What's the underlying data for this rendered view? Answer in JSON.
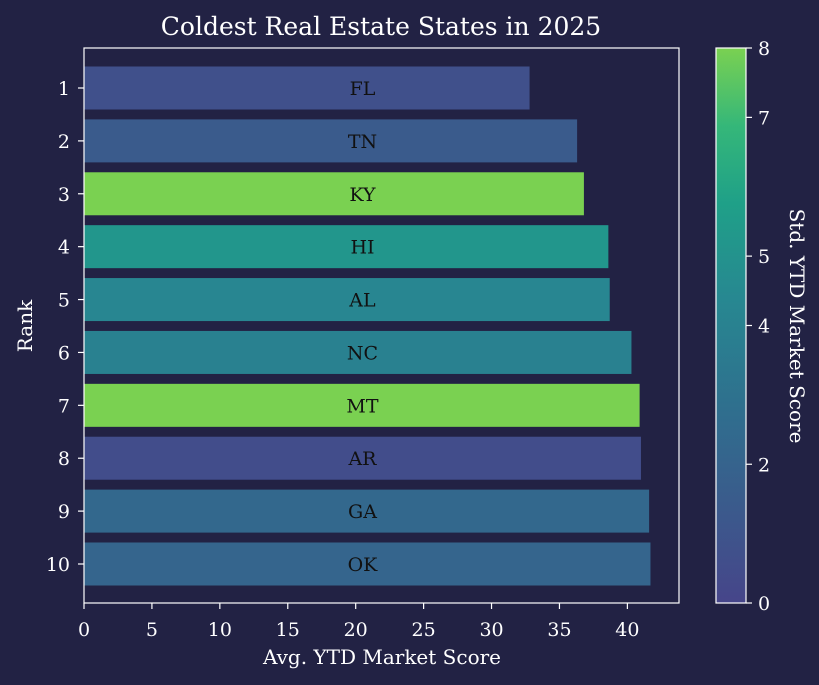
{
  "chart_data": {
    "type": "bar",
    "orientation": "horizontal",
    "title": "Coldest Real Estate States in 2025",
    "xlabel": "Avg. YTD Market Score",
    "ylabel": "Rank",
    "xlim": [
      0,
      43.8
    ],
    "xticks": [
      0,
      5,
      10,
      15,
      20,
      25,
      30,
      35,
      40
    ],
    "categories": [
      "1",
      "2",
      "3",
      "4",
      "5",
      "6",
      "7",
      "8",
      "9",
      "10"
    ],
    "bar_labels": [
      "FL",
      "TN",
      "KY",
      "HI",
      "AL",
      "NC",
      "MT",
      "AR",
      "GA",
      "OK"
    ],
    "values": [
      32.8,
      36.3,
      36.8,
      38.6,
      38.7,
      40.3,
      40.9,
      41.0,
      41.6,
      41.7
    ],
    "std_scores": [
      0.7,
      1.4,
      8.0,
      4.8,
      3.9,
      3.6,
      8.0,
      0.5,
      2.2,
      2.0
    ],
    "colorbar": {
      "label": "Std. YTD Market Score",
      "range": [
        0,
        8
      ],
      "ticks": [
        "0",
        "2",
        "4",
        "5",
        "7",
        "8"
      ],
      "tick_values": [
        0,
        2,
        4,
        5,
        7,
        8
      ],
      "colors": [
        "#46458a",
        "#3b5a8c",
        "#2f6f8e",
        "#278891",
        "#1fa088",
        "#35b779",
        "#7ad151"
      ]
    },
    "grid": false,
    "colors": {
      "background": "#222244",
      "text": "#ffffff",
      "label_text": "#111111"
    }
  }
}
